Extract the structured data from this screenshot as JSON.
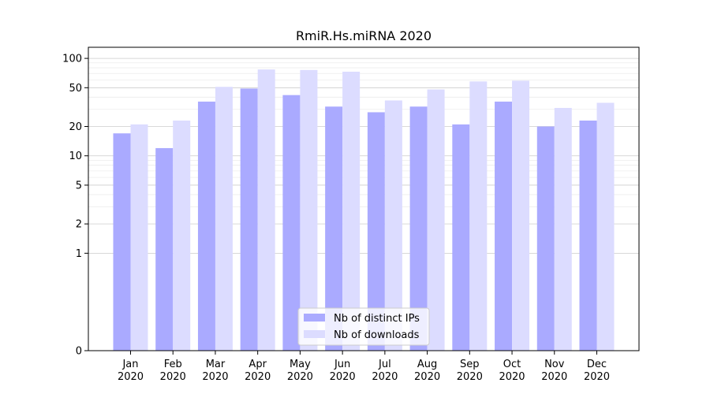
{
  "chart_data": {
    "type": "bar",
    "title": "RmiR.Hs.miRNA 2020",
    "xlabel": "",
    "ylabel": "",
    "y_scale": "symlog",
    "ylim": [
      0,
      130
    ],
    "y_ticks": [
      0,
      1,
      2,
      5,
      10,
      20,
      50,
      100
    ],
    "grid": true,
    "legend_position": "lower center",
    "categories": [
      [
        "Jan",
        "2020"
      ],
      [
        "Feb",
        "2020"
      ],
      [
        "Mar",
        "2020"
      ],
      [
        "Apr",
        "2020"
      ],
      [
        "May",
        "2020"
      ],
      [
        "Jun",
        "2020"
      ],
      [
        "Jul",
        "2020"
      ],
      [
        "Aug",
        "2020"
      ],
      [
        "Sep",
        "2020"
      ],
      [
        "Oct",
        "2020"
      ],
      [
        "Nov",
        "2020"
      ],
      [
        "Dec",
        "2020"
      ]
    ],
    "series": [
      {
        "name": "Nb of distinct IPs",
        "color": "#aaaaff",
        "values": [
          17,
          12,
          36,
          49,
          42,
          32,
          28,
          32,
          21,
          36,
          20,
          23
        ]
      },
      {
        "name": "Nb of downloads",
        "color": "#dcdcff",
        "values": [
          21,
          23,
          51,
          77,
          76,
          73,
          37,
          48,
          58,
          59,
          31,
          35
        ]
      }
    ]
  }
}
